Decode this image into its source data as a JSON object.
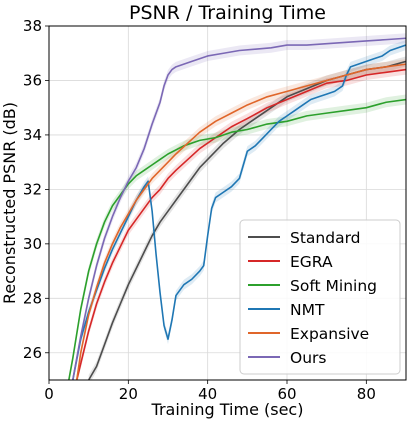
{
  "chart_data": {
    "type": "line",
    "title": "PSNR / Training Time",
    "xlabel": "Training Time (sec)",
    "ylabel": "Reconstructed PSNR (dB)",
    "xlim": [
      0,
      90
    ],
    "ylim": [
      25,
      38
    ],
    "xticks": [
      0,
      20,
      40,
      60,
      80
    ],
    "yticks": [
      26,
      28,
      30,
      32,
      34,
      36,
      38
    ],
    "grid": true,
    "legend_position": "lower-right",
    "series": [
      {
        "name": "Standard",
        "color": "#4d4d4d",
        "x": [
          10,
          12,
          14,
          16,
          18,
          20,
          22,
          24,
          26,
          28,
          30,
          32,
          34,
          36,
          38,
          40,
          44,
          48,
          52,
          56,
          60,
          65,
          70,
          75,
          80,
          85,
          90
        ],
        "y": [
          25.0,
          25.5,
          26.3,
          27.1,
          27.8,
          28.5,
          29.1,
          29.7,
          30.3,
          30.8,
          31.2,
          31.6,
          32.0,
          32.4,
          32.8,
          33.1,
          33.7,
          34.2,
          34.6,
          35.0,
          35.4,
          35.7,
          36.0,
          36.2,
          36.4,
          36.5,
          36.7
        ]
      },
      {
        "name": "EGRA",
        "color": "#d62728",
        "x": [
          7,
          8,
          10,
          12,
          14,
          16,
          18,
          20,
          22,
          24,
          26,
          28,
          30,
          32,
          35,
          38,
          42,
          46,
          50,
          55,
          60,
          65,
          70,
          75,
          80,
          85,
          90
        ],
        "y": [
          25.0,
          25.6,
          26.8,
          27.8,
          28.6,
          29.3,
          29.9,
          30.5,
          30.9,
          31.3,
          31.7,
          32.0,
          32.4,
          32.7,
          33.1,
          33.5,
          33.9,
          34.3,
          34.6,
          35.0,
          35.3,
          35.6,
          35.9,
          36.0,
          36.2,
          36.3,
          36.4
        ]
      },
      {
        "name": "Soft Mining",
        "color": "#2ca02c",
        "x": [
          5,
          6,
          8,
          10,
          12,
          14,
          16,
          18,
          20,
          22,
          24,
          26,
          28,
          30,
          34,
          38,
          42,
          46,
          50,
          55,
          60,
          65,
          70,
          75,
          80,
          85,
          90
        ],
        "y": [
          25.0,
          25.8,
          27.6,
          29.0,
          30.0,
          30.8,
          31.4,
          31.8,
          32.2,
          32.5,
          32.7,
          32.9,
          33.1,
          33.3,
          33.6,
          33.8,
          33.9,
          34.1,
          34.2,
          34.4,
          34.5,
          34.7,
          34.8,
          34.9,
          35.0,
          35.2,
          35.3
        ]
      },
      {
        "name": "NMT",
        "color": "#1f77b4",
        "x": [
          6,
          8,
          10,
          12,
          14,
          16,
          18,
          20,
          22,
          24,
          25,
          26,
          27,
          28,
          29,
          30,
          31,
          32,
          34,
          36,
          38,
          39,
          40,
          41,
          42,
          44,
          46,
          48,
          50,
          52,
          54,
          56,
          58,
          60,
          62,
          64,
          66,
          68,
          70,
          72,
          74,
          75,
          76,
          78,
          80,
          82,
          84,
          86,
          88,
          90
        ],
        "y": [
          25.0,
          26.5,
          27.5,
          28.3,
          29.1,
          29.8,
          30.4,
          31.0,
          31.6,
          32.1,
          32.3,
          31.2,
          29.6,
          28.2,
          27.0,
          26.5,
          27.2,
          28.1,
          28.5,
          28.7,
          29.0,
          29.2,
          30.3,
          31.3,
          31.7,
          31.9,
          32.1,
          32.4,
          33.4,
          33.6,
          33.9,
          34.2,
          34.5,
          34.7,
          34.9,
          35.1,
          35.3,
          35.4,
          35.5,
          35.6,
          35.8,
          36.2,
          36.5,
          36.6,
          36.7,
          36.8,
          36.9,
          37.1,
          37.2,
          37.3
        ]
      },
      {
        "name": "Expansive",
        "color": "#e0662a",
        "x": [
          7,
          8,
          10,
          12,
          14,
          16,
          18,
          20,
          22,
          24,
          26,
          28,
          30,
          32,
          35,
          38,
          42,
          46,
          50,
          55,
          60,
          65,
          70,
          75,
          80,
          85,
          90
        ],
        "y": [
          25.0,
          26.0,
          27.4,
          28.4,
          29.3,
          30.0,
          30.6,
          31.1,
          31.6,
          32.0,
          32.4,
          32.7,
          33.0,
          33.3,
          33.7,
          34.1,
          34.5,
          34.8,
          35.1,
          35.4,
          35.6,
          35.8,
          36.0,
          36.2,
          36.4,
          36.5,
          36.6
        ]
      },
      {
        "name": "Ours",
        "color": "#7b68b5",
        "x": [
          6,
          8,
          10,
          12,
          14,
          16,
          18,
          20,
          22,
          24,
          26,
          28,
          29,
          30,
          31,
          32,
          34,
          36,
          40,
          44,
          48,
          52,
          56,
          60,
          65,
          70,
          75,
          80,
          85,
          90
        ],
        "y": [
          25.0,
          26.6,
          28.0,
          29.2,
          30.2,
          31.0,
          31.7,
          32.3,
          32.8,
          33.5,
          34.4,
          35.2,
          35.8,
          36.2,
          36.4,
          36.5,
          36.6,
          36.7,
          36.9,
          37.0,
          37.1,
          37.15,
          37.2,
          37.3,
          37.3,
          37.35,
          37.4,
          37.45,
          37.5,
          37.55
        ]
      }
    ]
  }
}
